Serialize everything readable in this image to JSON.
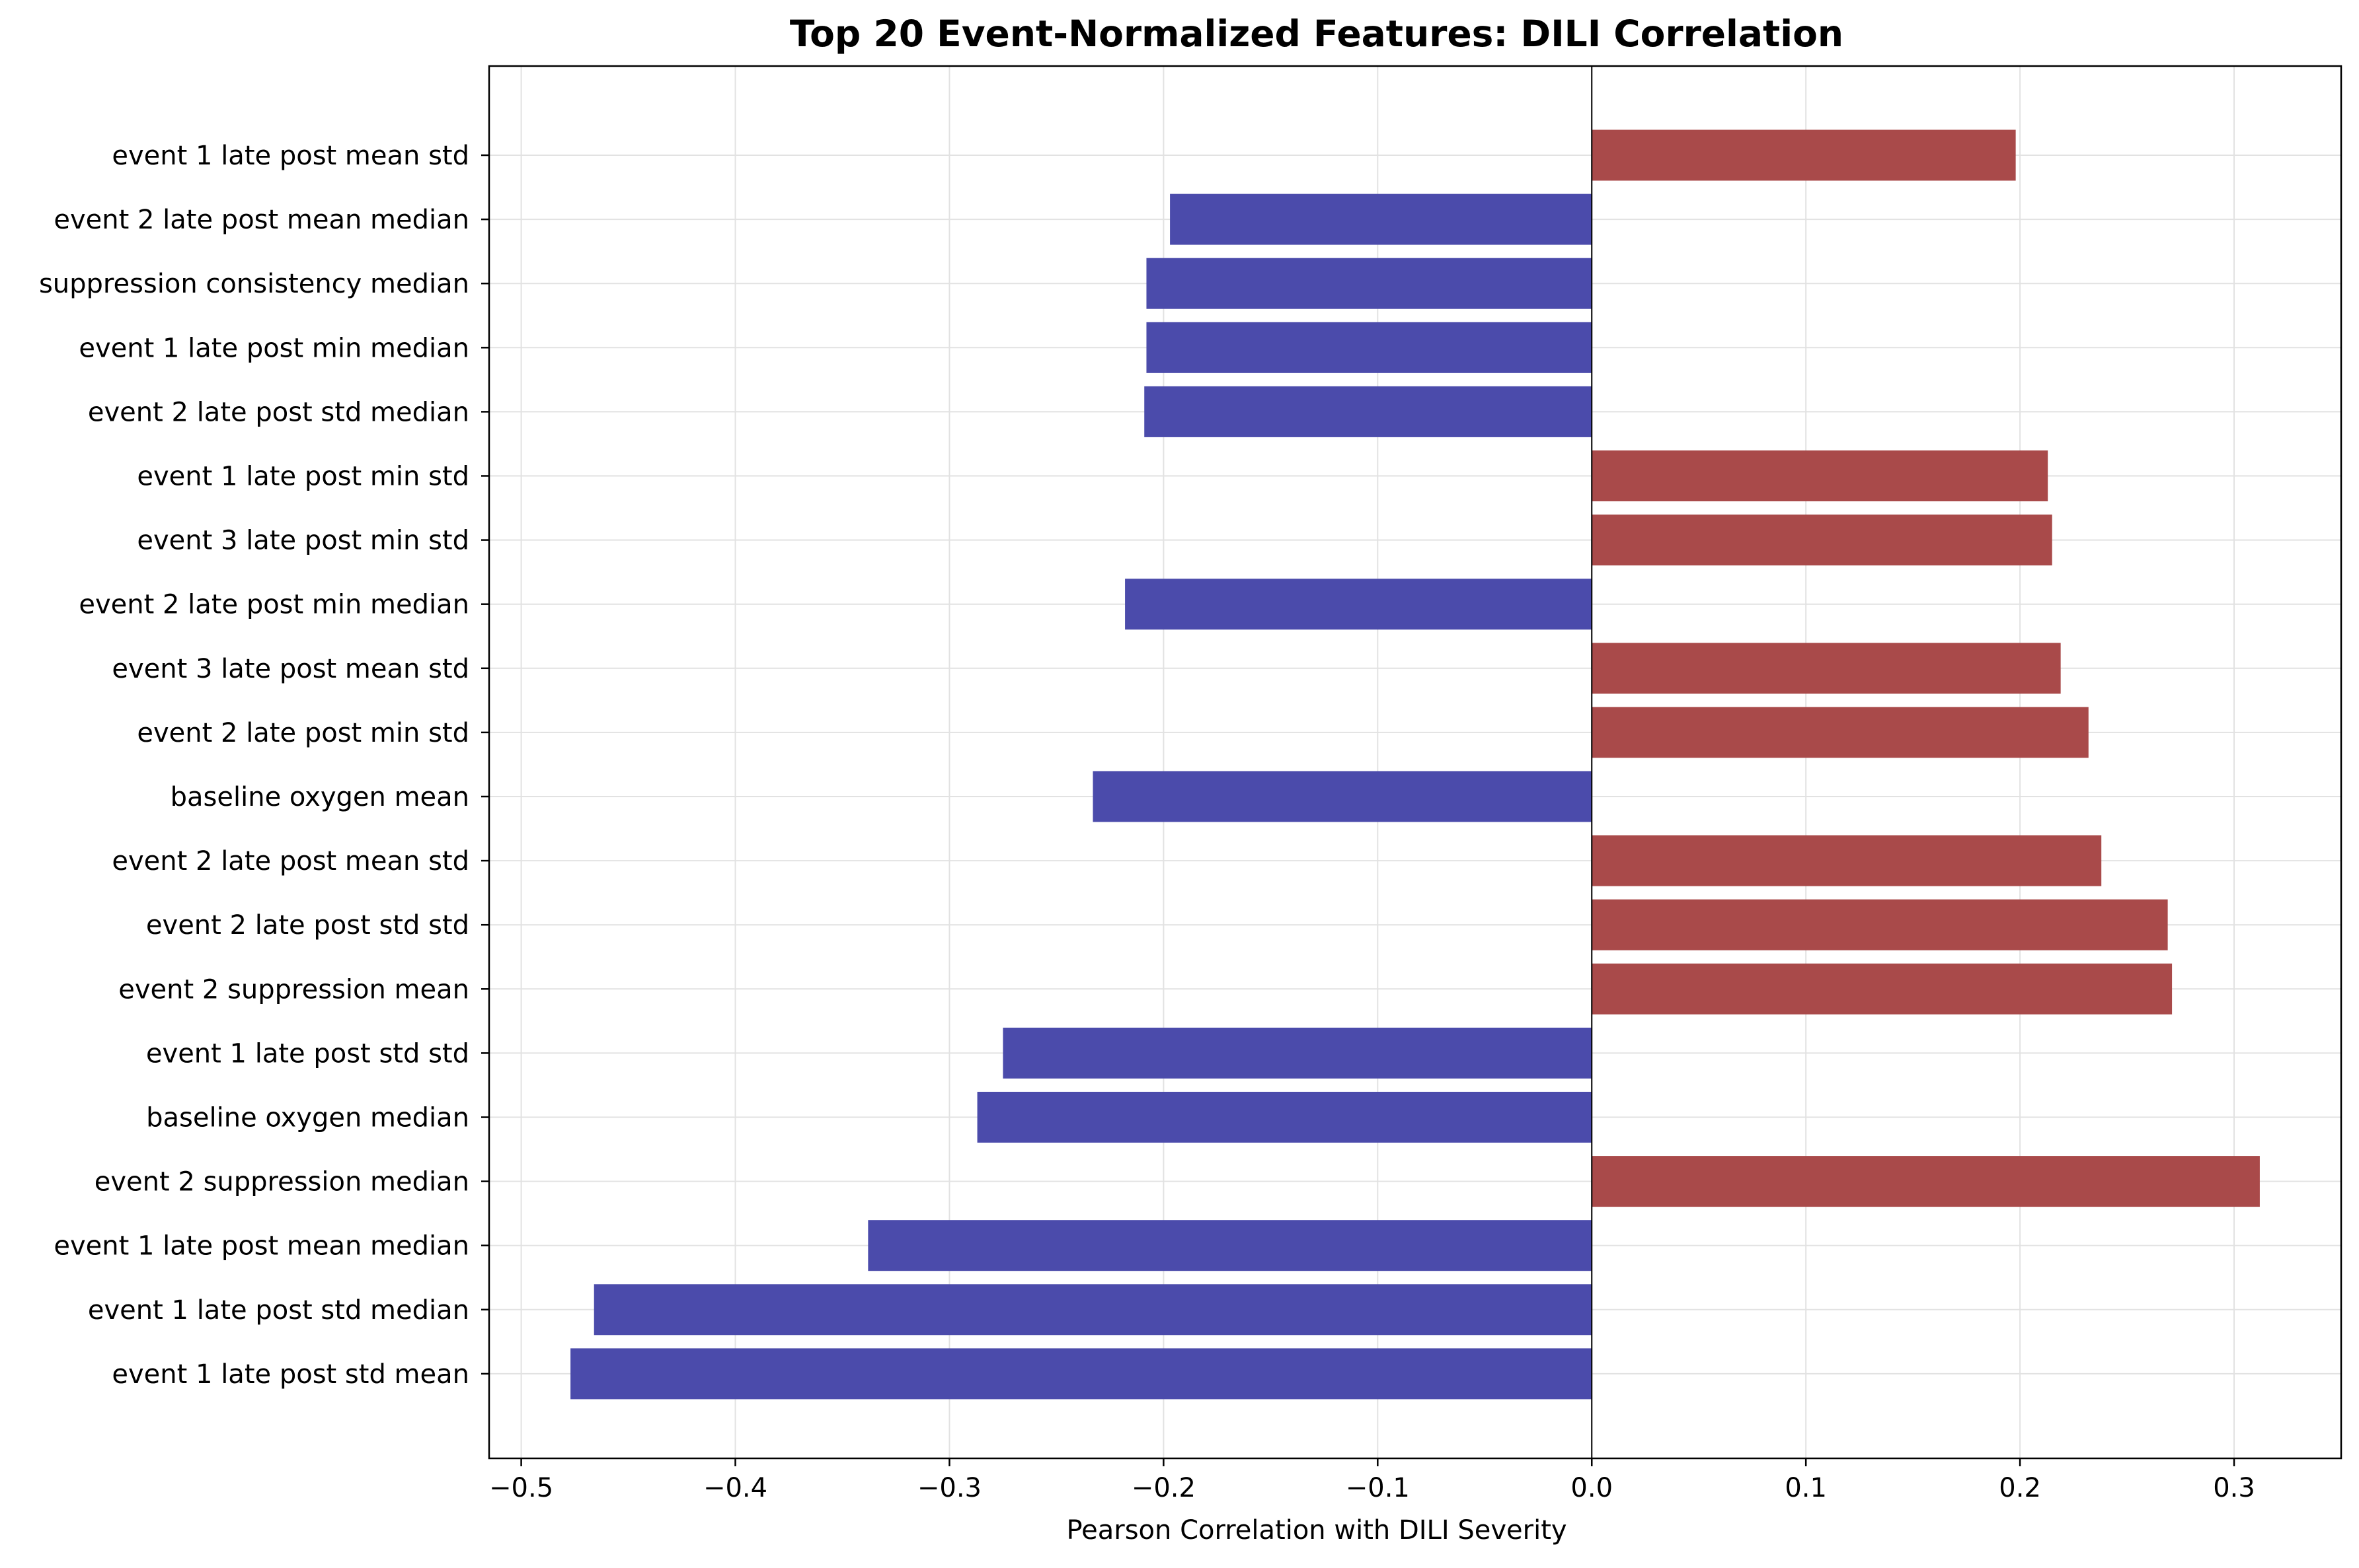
{
  "chart_data": {
    "type": "bar",
    "orientation": "horizontal",
    "title": "Top 20 Event-Normalized Features: DILI Correlation",
    "xlabel": "Pearson Correlation with DILI Severity",
    "ylabel": "",
    "xlim": [
      -0.515,
      0.35
    ],
    "x_ticks": [
      -0.5,
      -0.4,
      -0.3,
      -0.2,
      -0.1,
      0.0,
      0.1,
      0.2,
      0.3
    ],
    "x_tick_labels": [
      "−0.5",
      "−0.4",
      "−0.3",
      "−0.2",
      "−0.1",
      "0.0",
      "0.1",
      "0.2",
      "0.3"
    ],
    "grid": true,
    "legend": "none",
    "colors": {
      "positive": "#a94a4a",
      "negative": "#4b4bab",
      "grid": "#e2e2e2",
      "axis": "#000000"
    },
    "categories": [
      "event 1 late post mean std",
      "event 2 late post mean median",
      "suppression consistency median",
      "event 1 late post min median",
      "event 2 late post std median",
      "event 1 late post min std",
      "event 3 late post min std",
      "event 2 late post min median",
      "event 3 late post mean std",
      "event 2 late post min std",
      "baseline oxygen mean",
      "event 2 late post mean std",
      "event 2 late post std std",
      "event 2 suppression mean",
      "event 1 late post std std",
      "baseline oxygen median",
      "event 2 suppression median",
      "event 1 late post mean median",
      "event 1 late post std median",
      "event 1 late post std mean"
    ],
    "values": [
      0.198,
      -0.197,
      -0.208,
      -0.208,
      -0.209,
      0.213,
      0.215,
      -0.218,
      0.219,
      0.232,
      -0.233,
      0.238,
      0.269,
      0.271,
      -0.275,
      -0.287,
      0.312,
      -0.338,
      -0.466,
      -0.477
    ]
  }
}
